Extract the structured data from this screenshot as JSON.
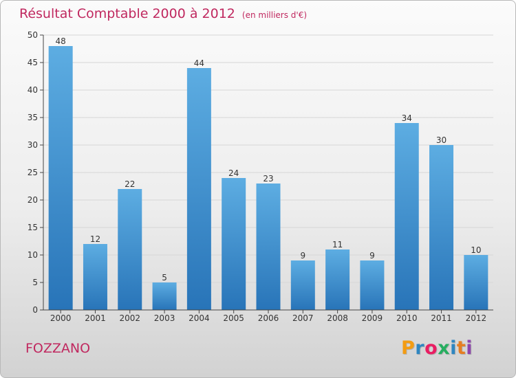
{
  "header": {
    "title": "Résultat Comptable 2000 à 2012",
    "unit": "(en milliers d'€)"
  },
  "commune": "FOZZANO",
  "logo": {
    "text": "Proxiti",
    "letters": [
      "P",
      "r",
      "o",
      "x",
      "i",
      "t",
      "i"
    ],
    "colors": [
      "#f39c12",
      "#2e86c1",
      "#e91e63",
      "#27ae60",
      "#2e86c1",
      "#e67e22",
      "#8e44ad"
    ]
  },
  "colors": {
    "bar_light": "#5dade2",
    "bar_dark": "#2874b8",
    "title": "#c0285f",
    "grid": "#d6d6d6",
    "axis": "#444444"
  },
  "chart_data": {
    "type": "bar",
    "title": "Résultat Comptable 2000 à 2012",
    "subtitle": "(en milliers d'€)",
    "xlabel": "",
    "ylabel": "",
    "categories": [
      "2000",
      "2001",
      "2002",
      "2003",
      "2004",
      "2005",
      "2006",
      "2007",
      "2008",
      "2009",
      "2010",
      "2011",
      "2012"
    ],
    "values": [
      48,
      12,
      22,
      5,
      44,
      24,
      23,
      9,
      11,
      9,
      34,
      30,
      10
    ],
    "ylim": [
      0,
      50
    ],
    "yticks": [
      0,
      5,
      10,
      15,
      20,
      25,
      30,
      35,
      40,
      45,
      50
    ],
    "grid": true,
    "data_labels": true
  }
}
